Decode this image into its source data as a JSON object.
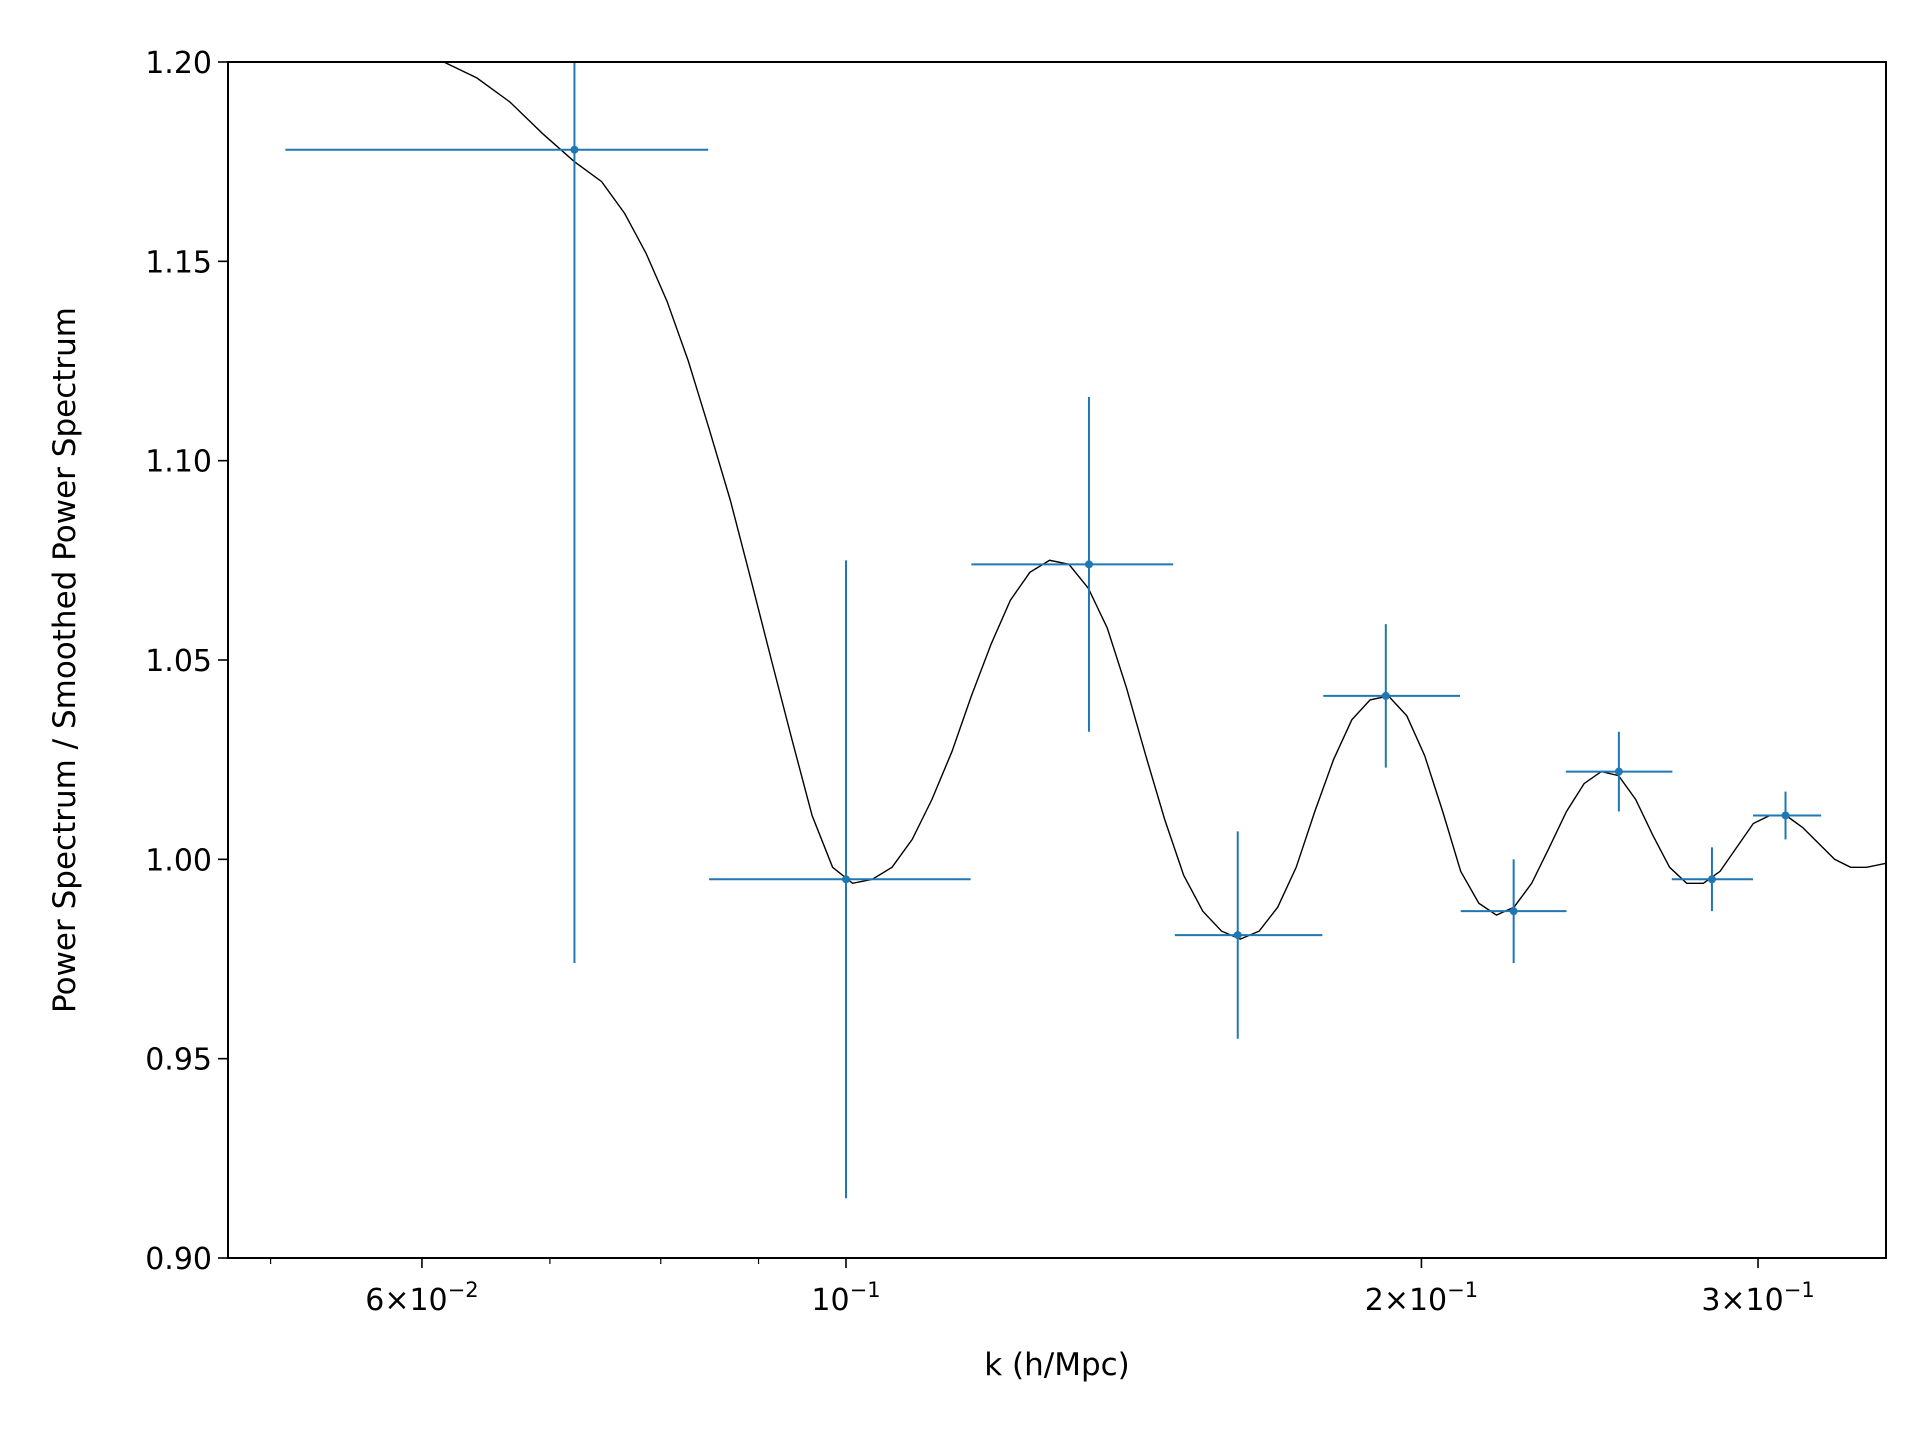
{
  "chart_data": {
    "type": "scatter",
    "title": "",
    "xlabel": "k (h/Mpc)",
    "ylabel": "Power Spectrum / Smoothed Power Spectrum",
    "xscale": "log",
    "xlim": [
      0.0475,
      0.35
    ],
    "ylim": [
      0.9,
      1.2
    ],
    "grid": false,
    "legend": "none",
    "colors": {
      "points": "#1f77b4",
      "model": "#000000",
      "axes": "#000000"
    },
    "x_ticks": [
      {
        "value": 0.06,
        "mantissa": "6",
        "exponent": "−2"
      },
      {
        "value": 0.1,
        "mantissa": "",
        "exponent": "−1"
      },
      {
        "value": 0.2,
        "mantissa": "2",
        "exponent": "−1"
      },
      {
        "value": 0.3,
        "mantissa": "3",
        "exponent": "−1"
      }
    ],
    "x_minor_ticks": [
      0.05,
      0.07,
      0.08,
      0.09,
      0.4
    ],
    "y_ticks": [
      {
        "value": 0.9,
        "label": "0.90"
      },
      {
        "value": 0.95,
        "label": "0.95"
      },
      {
        "value": 1.0,
        "label": "1.00"
      },
      {
        "value": 1.05,
        "label": "1.05"
      },
      {
        "value": 1.1,
        "label": "1.10"
      },
      {
        "value": 1.15,
        "label": "1.15"
      },
      {
        "value": 1.2,
        "label": "1.20"
      }
    ],
    "points": [
      {
        "x": 0.0721,
        "y": 1.178,
        "xlo": 0.0509,
        "xhi": 0.0847,
        "ylo": 0.974,
        "yhi": 1.2
      },
      {
        "x": 0.1,
        "y": 0.995,
        "xlo": 0.0848,
        "xhi": 0.1162,
        "ylo": 0.915,
        "yhi": 1.075
      },
      {
        "x": 0.134,
        "y": 1.074,
        "xlo": 0.1163,
        "xhi": 0.1483,
        "ylo": 1.032,
        "yhi": 1.116
      },
      {
        "x": 0.1603,
        "y": 0.981,
        "xlo": 0.1486,
        "xhi": 0.1775,
        "ylo": 0.955,
        "yhi": 1.007
      },
      {
        "x": 0.1916,
        "y": 1.041,
        "xlo": 0.1777,
        "xhi": 0.2095,
        "ylo": 1.023,
        "yhi": 1.059
      },
      {
        "x": 0.2235,
        "y": 0.987,
        "xlo": 0.2097,
        "xhi": 0.2382,
        "ylo": 0.974,
        "yhi": 1.0
      },
      {
        "x": 0.2537,
        "y": 1.022,
        "xlo": 0.238,
        "xhi": 0.2706,
        "ylo": 1.012,
        "yhi": 1.032
      },
      {
        "x": 0.2838,
        "y": 0.995,
        "xlo": 0.2704,
        "xhi": 0.2982,
        "ylo": 0.987,
        "yhi": 1.003
      },
      {
        "x": 0.3101,
        "y": 1.011,
        "xlo": 0.2982,
        "xhi": 0.3237,
        "ylo": 1.005,
        "yhi": 1.017
      }
    ],
    "model_curve": {
      "x": [
        0.0475,
        0.05,
        0.055,
        0.058,
        0.0616,
        0.0641,
        0.0667,
        0.0694,
        0.0721,
        0.0745,
        0.0766,
        0.0786,
        0.0806,
        0.0827,
        0.0848,
        0.087,
        0.0892,
        0.0914,
        0.0937,
        0.096,
        0.0984,
        0.1008,
        0.1032,
        0.1057,
        0.1083,
        0.1109,
        0.1136,
        0.1163,
        0.1191,
        0.1219,
        0.1248,
        0.1278,
        0.1308,
        0.1339,
        0.137,
        0.1402,
        0.1435,
        0.1468,
        0.1502,
        0.1537,
        0.1572,
        0.1608,
        0.1645,
        0.1682,
        0.172,
        0.1759,
        0.1799,
        0.1839,
        0.188,
        0.1922,
        0.1965,
        0.2008,
        0.2052,
        0.2097,
        0.2143,
        0.2189,
        0.2236,
        0.2284,
        0.2333,
        0.2382,
        0.2433,
        0.2484,
        0.2536,
        0.2589,
        0.2643,
        0.2697,
        0.2753,
        0.2809,
        0.2866,
        0.2924,
        0.2983,
        0.3043,
        0.3103,
        0.3165,
        0.3227,
        0.329,
        0.3354,
        0.3419,
        0.35
      ],
      "y": [
        1.2,
        1.2,
        1.2,
        1.2,
        1.2,
        1.196,
        1.19,
        1.182,
        1.175,
        1.17,
        1.162,
        1.152,
        1.14,
        1.125,
        1.108,
        1.09,
        1.07,
        1.05,
        1.03,
        1.011,
        0.998,
        0.994,
        0.995,
        0.998,
        1.005,
        1.015,
        1.027,
        1.041,
        1.054,
        1.065,
        1.072,
        1.075,
        1.074,
        1.068,
        1.058,
        1.043,
        1.026,
        1.01,
        0.996,
        0.987,
        0.982,
        0.98,
        0.982,
        0.988,
        0.998,
        1.012,
        1.025,
        1.035,
        1.04,
        1.041,
        1.036,
        1.026,
        1.012,
        0.997,
        0.989,
        0.986,
        0.988,
        0.994,
        1.003,
        1.012,
        1.019,
        1.022,
        1.021,
        1.015,
        1.006,
        0.998,
        0.994,
        0.994,
        0.997,
        1.003,
        1.009,
        1.011,
        1.011,
        1.008,
        1.004,
        1.0,
        0.998,
        0.998,
        0.999
      ]
    }
  }
}
